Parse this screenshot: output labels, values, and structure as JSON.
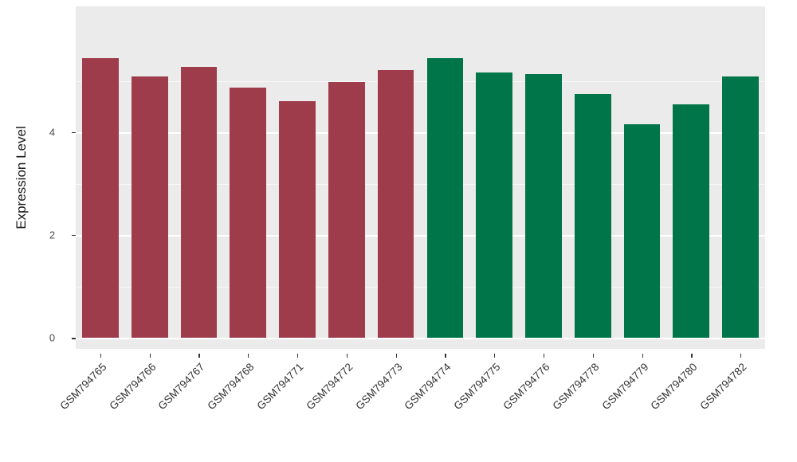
{
  "chart_data": {
    "type": "bar",
    "title": "",
    "xlabel": "",
    "ylabel": "Expression Level",
    "categories": [
      "GSM794765",
      "GSM794766",
      "GSM794767",
      "GSM794768",
      "GSM794771",
      "GSM794772",
      "GSM794773",
      "GSM794774",
      "GSM794775",
      "GSM794776",
      "GSM794778",
      "GSM794779",
      "GSM794780",
      "GSM794782"
    ],
    "values": [
      5.45,
      5.08,
      5.27,
      4.87,
      4.6,
      4.98,
      5.21,
      5.44,
      5.16,
      5.13,
      4.74,
      4.16,
      4.54,
      5.08
    ],
    "groups": [
      "a",
      "a",
      "a",
      "a",
      "a",
      "a",
      "a",
      "b",
      "b",
      "b",
      "b",
      "b",
      "b",
      "b"
    ],
    "group_colors": {
      "a": "#9e3c4c",
      "b": "#00754a"
    },
    "yticks": [
      0,
      2,
      4
    ],
    "ytick_labels": [
      "0",
      "2",
      "4"
    ],
    "minor_ticks": [
      1,
      3,
      5
    ],
    "y_min_display": -0.21,
    "y_max_display": 6.45,
    "ylim": [
      0,
      5.45
    ],
    "bar_slot_fraction": 0.74,
    "panel_bg": "#ebebeb",
    "grid_color": "#ffffff",
    "legend": "none",
    "grid": "on"
  }
}
